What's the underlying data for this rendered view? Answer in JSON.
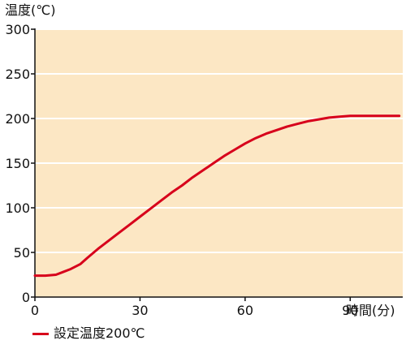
{
  "chart_data": {
    "type": "line",
    "ylabel": "温度(℃)",
    "xlabel": "時間(分)",
    "ylim": [
      0,
      300
    ],
    "xlim": [
      0,
      105
    ],
    "yticks": [
      0,
      50,
      100,
      150,
      200,
      250,
      300
    ],
    "xticks": [
      0,
      30,
      60,
      90
    ],
    "grid": "horizontal",
    "legend_position": "bottom-left",
    "plot_background": "#FCE7C4",
    "series": [
      {
        "name": "設定温度200℃",
        "color": "#D7001B",
        "x": [
          0,
          3,
          6,
          8,
          10,
          13,
          15,
          18,
          21,
          24,
          27,
          30,
          33,
          36,
          39,
          42,
          45,
          48,
          51,
          54,
          57,
          60,
          63,
          66,
          69,
          72,
          75,
          78,
          81,
          84,
          87,
          90,
          93,
          96,
          99,
          102,
          104
        ],
        "y": [
          24,
          24,
          25,
          28,
          31,
          37,
          44,
          54,
          63,
          72,
          81,
          90,
          99,
          108,
          117,
          125,
          134,
          142,
          150,
          158,
          165,
          172,
          178,
          183,
          187,
          191,
          194,
          197,
          199,
          201,
          202,
          203,
          203,
          203,
          203,
          203,
          203
        ]
      }
    ]
  }
}
